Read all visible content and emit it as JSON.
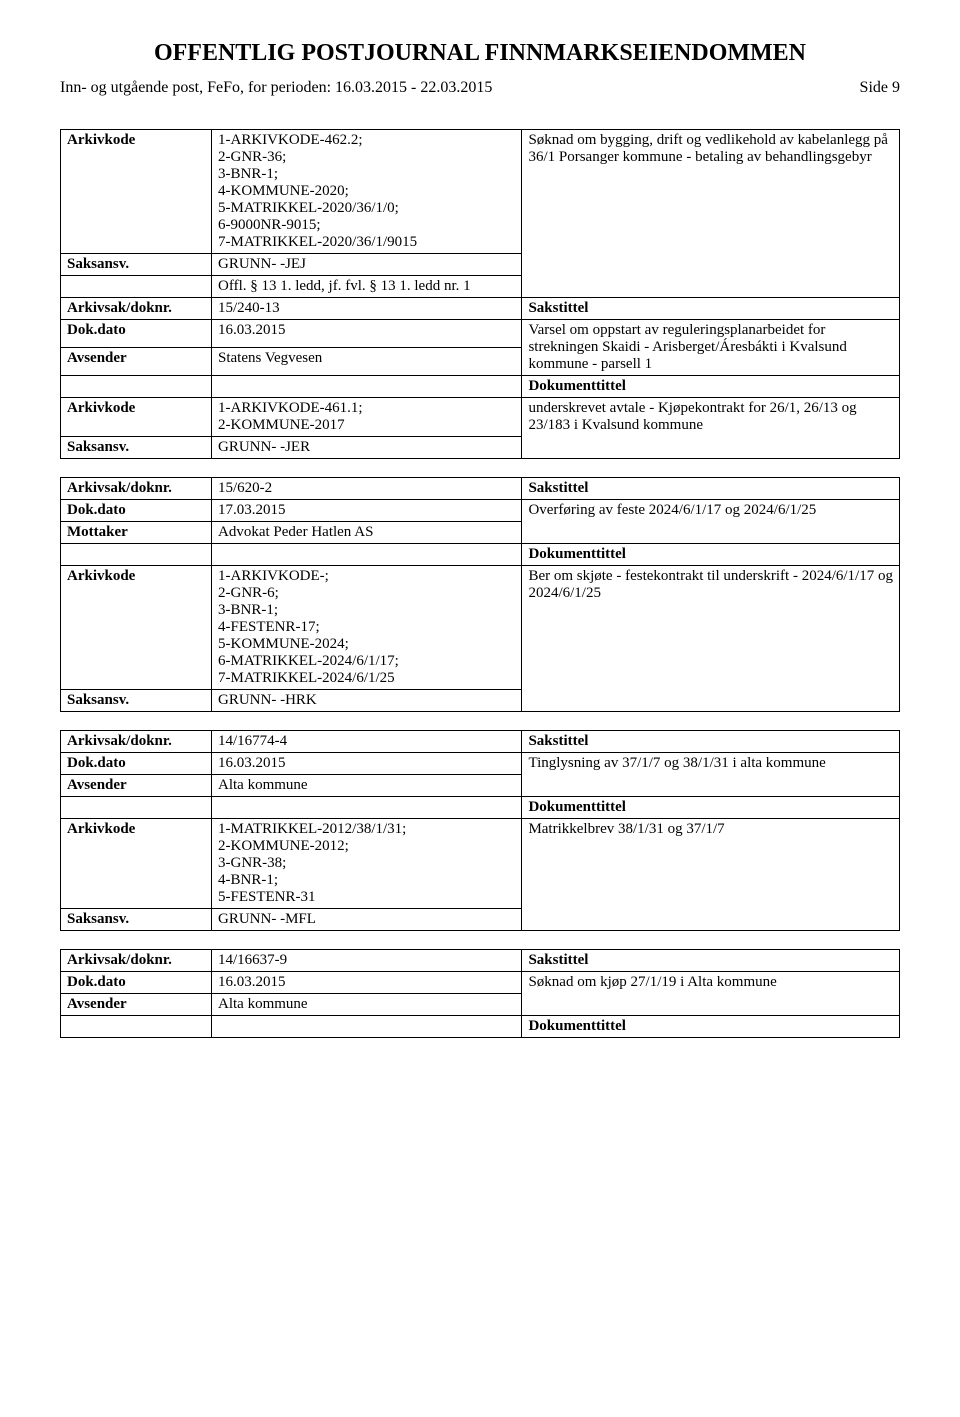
{
  "header": {
    "main_title": "OFFENTLIG POSTJOURNAL FINNMARKSEIENDOMMEN",
    "sub_left": "Inn- og utgående post, FeFo, for perioden: 16.03.2015 - 22.03.2015",
    "page_indicator": "Side 9"
  },
  "labels": {
    "arkivkode": "Arkivkode",
    "saksansv": "Saksansv.",
    "arkivsak_doknr": "Arkivsak/doknr.",
    "dok_dato": "Dok.dato",
    "avsender": "Avsender",
    "mottaker": "Mottaker",
    "sakstittel": "Sakstittel",
    "dokumenttittel": "Dokumenttittel"
  },
  "blocks": [
    {
      "rows": [
        {
          "label_key": "arkivkode",
          "value": "1-ARKIVKODE-462.2;\n2-GNR-36;\n3-BNR-1;\n4-KOMMUNE-2020;\n5-MATRIKKEL-2020/36/1/0;\n6-9000NR-9015;\n7-MATRIKKEL-2020/36/1/9015",
          "desc": "Søknad om bygging, drift og vedlikehold av kabelanlegg på 36/1 Porsanger kommune - betaling av behandlingsgebyr",
          "desc_rowspan": 3
        },
        {
          "label_key": "saksansv",
          "value": "GRUNN- -JEJ"
        },
        {
          "label_key": "",
          "value": "Offl. § 13 1. ledd, jf. fvl. § 13 1. ledd nr. 1"
        },
        {
          "label_key": "arkivsak_doknr",
          "value": "15/240-13",
          "desc_key": "sakstittel",
          "desc_bold": true
        },
        {
          "label_key": "dok_dato",
          "value": "16.03.2015",
          "desc": "Varsel om oppstart av reguleringsplanarbeidet for strekningen Skaidi - Arisberget/Áresbákti i Kvalsund kommune - parsell 1",
          "desc_rowspan": 2
        },
        {
          "label_key": "avsender",
          "value": "Statens Vegvesen"
        },
        {
          "label_key": "",
          "value": "",
          "desc_key": "dokumenttittel",
          "desc_bold": true
        },
        {
          "label_key": "arkivkode",
          "value": "1-ARKIVKODE-461.1;\n2-KOMMUNE-2017",
          "desc": "underskrevet avtale - Kjøpekontrakt for 26/1, 26/13 og 23/183 i Kvalsund kommune",
          "desc_rowspan": 2
        },
        {
          "label_key": "saksansv",
          "value": "GRUNN- -JER"
        }
      ]
    },
    {
      "rows": [
        {
          "label_key": "arkivsak_doknr",
          "value": "15/620-2",
          "desc_key": "sakstittel",
          "desc_bold": true
        },
        {
          "label_key": "dok_dato",
          "value": "17.03.2015",
          "desc": "Overføring av feste 2024/6/1/17 og 2024/6/1/25",
          "desc_rowspan": 2
        },
        {
          "label_key": "mottaker",
          "value": "Advokat Peder Hatlen AS"
        },
        {
          "label_key": "",
          "value": "",
          "desc_key": "dokumenttittel",
          "desc_bold": true
        },
        {
          "label_key": "arkivkode",
          "value": "1-ARKIVKODE-;\n2-GNR-6;\n3-BNR-1;\n4-FESTENR-17;\n5-KOMMUNE-2024;\n6-MATRIKKEL-2024/6/1/17;\n7-MATRIKKEL-2024/6/1/25",
          "desc": "Ber om skjøte - festekontrakt til underskrift - 2024/6/1/17 og 2024/6/1/25",
          "desc_rowspan": 2
        },
        {
          "label_key": "saksansv",
          "value": "GRUNN- -HRK"
        }
      ]
    },
    {
      "rows": [
        {
          "label_key": "arkivsak_doknr",
          "value": "14/16774-4",
          "desc_key": "sakstittel",
          "desc_bold": true
        },
        {
          "label_key": "dok_dato",
          "value": "16.03.2015",
          "desc": "Tinglysning av 37/1/7 og 38/1/31 i alta kommune",
          "desc_rowspan": 2
        },
        {
          "label_key": "avsender",
          "value": "Alta kommune"
        },
        {
          "label_key": "",
          "value": "",
          "desc_key": "dokumenttittel",
          "desc_bold": true
        },
        {
          "label_key": "arkivkode",
          "value": "1-MATRIKKEL-2012/38/1/31;\n2-KOMMUNE-2012;\n3-GNR-38;\n4-BNR-1;\n5-FESTENR-31",
          "desc": "Matrikkelbrev 38/1/31 og 37/1/7",
          "desc_rowspan": 2
        },
        {
          "label_key": "saksansv",
          "value": "GRUNN- -MFL"
        }
      ]
    },
    {
      "rows": [
        {
          "label_key": "arkivsak_doknr",
          "value": "14/16637-9",
          "desc_key": "sakstittel",
          "desc_bold": true
        },
        {
          "label_key": "dok_dato",
          "value": "16.03.2015",
          "desc": "Søknad om kjøp 27/1/19 i Alta kommune",
          "desc_rowspan": 2
        },
        {
          "label_key": "avsender",
          "value": "Alta kommune"
        },
        {
          "label_key": "",
          "value": "",
          "desc_key": "dokumenttittel",
          "desc_bold": true
        }
      ]
    }
  ],
  "style": {
    "font_family": "Times New Roman",
    "title_fontsize": 24,
    "body_fontsize": 15,
    "border_color": "#000000",
    "background_color": "#ffffff",
    "text_color": "#000000",
    "col_widths_pct": [
      18,
      37,
      45
    ]
  }
}
